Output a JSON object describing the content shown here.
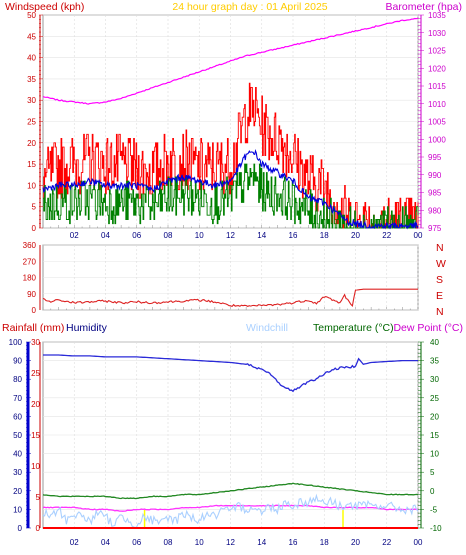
{
  "chart_data": [
    {
      "type": "line",
      "title": "24 hour graph day : 01 April 2025",
      "left_axis_label": "Windspeed (kph)",
      "right_axis_label": "Barometer (hpa)",
      "x_ticks": [
        "02",
        "04",
        "06",
        "08",
        "10",
        "12",
        "14",
        "16",
        "18",
        "20",
        "22",
        "00"
      ],
      "left_ticks": [
        "0",
        "5",
        "10",
        "15",
        "20",
        "25",
        "30",
        "35",
        "40",
        "45",
        "50"
      ],
      "right_ticks": [
        "975",
        "980",
        "985",
        "990",
        "995",
        "1000",
        "1005",
        "1010",
        "1015",
        "1020",
        "1025",
        "1030",
        "1035"
      ],
      "ylim_left": [
        0,
        50
      ],
      "ylim_right": [
        975,
        1035
      ],
      "grid": true,
      "colors": {
        "gust": "#ff0000",
        "avg": "#0000dd",
        "low": "#008000",
        "baro": "#ff00ff"
      },
      "series": [
        {
          "key": "gust",
          "color": "#ff0000",
          "x": [
            0,
            1,
            2,
            3,
            4,
            5,
            6,
            7,
            8,
            9,
            10,
            11,
            12,
            12.5,
            13,
            13.5,
            14,
            14.5,
            15,
            16,
            17,
            18,
            19,
            19.5,
            20,
            21,
            22,
            23,
            24
          ],
          "values": [
            12,
            14,
            15,
            16,
            15,
            15,
            14,
            13,
            16,
            16,
            14,
            14,
            15,
            20,
            27,
            28,
            24,
            22,
            21,
            17,
            11,
            10,
            5,
            2,
            2,
            1,
            1,
            1,
            1
          ]
        },
        {
          "key": "avg",
          "color": "#0000dd",
          "x": [
            0,
            1,
            2,
            3,
            4,
            5,
            6,
            7,
            8,
            9,
            10,
            11,
            12,
            12.5,
            13,
            13.5,
            14,
            14.5,
            15,
            16,
            17,
            18,
            19,
            19.5,
            20,
            21,
            22,
            23,
            24
          ],
          "values": [
            9,
            10,
            10,
            11,
            10,
            10,
            10,
            9,
            11,
            12,
            11,
            10,
            11,
            14,
            17,
            18,
            15,
            14,
            13,
            11,
            7,
            6,
            3,
            1.5,
            1,
            0.5,
            0.5,
            0.5,
            0.5
          ]
        },
        {
          "key": "low",
          "color": "#008000",
          "x": [
            0,
            1,
            2,
            3,
            4,
            5,
            6,
            7,
            8,
            9,
            10,
            11,
            12,
            12.5,
            13,
            13.5,
            14,
            14.5,
            15,
            16,
            17,
            18,
            19,
            19.5,
            20,
            21,
            22,
            23,
            24
          ],
          "values": [
            5,
            6,
            6,
            7,
            6,
            6,
            6,
            5,
            7,
            8,
            7,
            6,
            7,
            9,
            11,
            12,
            9,
            8,
            8,
            6,
            4,
            3,
            1,
            0,
            0,
            0,
            0,
            0,
            0
          ]
        },
        {
          "key": "baro",
          "color": "#ff00ff",
          "x": [
            0,
            1,
            2,
            3,
            4,
            5,
            6,
            7,
            8,
            9,
            10,
            11,
            12,
            13,
            14,
            15,
            16,
            17,
            18,
            19,
            20,
            21,
            22,
            23,
            24
          ],
          "values": [
            1012,
            1011,
            1010.5,
            1010,
            1010.5,
            1011.5,
            1013,
            1014.5,
            1016,
            1017.5,
            1019,
            1020.5,
            1022,
            1023.5,
            1024.5,
            1025.5,
            1026.5,
            1027.5,
            1028.5,
            1029.5,
            1030.5,
            1031.5,
            1032.5,
            1033.5,
            1034
          ]
        }
      ]
    },
    {
      "type": "line",
      "title": "",
      "y_ticks": [
        "0",
        "90",
        "180",
        "270",
        "360"
      ],
      "ylim": [
        0,
        360
      ],
      "compass_labels": [
        "N",
        "W",
        "S",
        "E",
        "N"
      ],
      "grid": true,
      "series": [
        {
          "key": "direction",
          "color": "#dd2222",
          "x": [
            0,
            0.5,
            1,
            2,
            3,
            4,
            5,
            6,
            7,
            8,
            9,
            10,
            11,
            12,
            13,
            14,
            15,
            16,
            17,
            17.5,
            18,
            19,
            19.3,
            19.8,
            20,
            20.5,
            21,
            22,
            23,
            24
          ],
          "values": [
            60,
            45,
            55,
            40,
            45,
            50,
            40,
            45,
            40,
            45,
            50,
            55,
            45,
            25,
            20,
            25,
            30,
            40,
            55,
            35,
            75,
            40,
            80,
            20,
            110,
            115,
            115,
            115,
            115,
            115
          ]
        }
      ]
    },
    {
      "type": "line",
      "labels": {
        "rain": "Rainfall (mm)",
        "humidity": "Humidity",
        "windchill": "Windchill",
        "temperature": "Temperature (°C)",
        "dewpoint": "Dew Point (°C)"
      },
      "x_ticks": [
        "02",
        "04",
        "06",
        "08",
        "10",
        "12",
        "14",
        "16",
        "18",
        "20",
        "22",
        "00"
      ],
      "humidity_ticks": [
        "0",
        "10",
        "20",
        "30",
        "40",
        "50",
        "60",
        "70",
        "80",
        "90",
        "100"
      ],
      "rain_ticks": [
        "0",
        "5",
        "10",
        "15",
        "20",
        "25",
        "30"
      ],
      "temp_ticks": [
        "-10",
        "-5",
        "0",
        "5",
        "10",
        "15",
        "20",
        "25",
        "30",
        "35",
        "40"
      ],
      "ylim_humidity": [
        0,
        100
      ],
      "ylim_rain": [
        0,
        30
      ],
      "ylim_temp": [
        -10,
        40
      ],
      "grid": true,
      "series": [
        {
          "key": "humidity",
          "color": "#2a2ad8",
          "x": [
            0,
            1,
            2,
            3,
            4,
            5,
            6,
            7,
            8,
            9,
            10,
            11,
            12,
            13,
            13.5,
            14,
            14.5,
            15,
            15.5,
            16,
            16.5,
            17,
            17.5,
            18,
            18.5,
            19,
            19.5,
            20,
            20.2,
            20.5,
            21,
            22,
            23,
            24
          ],
          "values": [
            93,
            93,
            92.5,
            92.5,
            92,
            92,
            92,
            91.5,
            91,
            90.5,
            90,
            89.5,
            89,
            88,
            87,
            85,
            83,
            79,
            75,
            74,
            76,
            79,
            80,
            83,
            85,
            86,
            86.5,
            87,
            91,
            88,
            89,
            89.5,
            90,
            90
          ]
        },
        {
          "key": "temperature",
          "color": "#228822",
          "x": [
            0,
            1,
            2,
            3,
            4,
            5,
            6,
            7,
            8,
            9,
            10,
            11,
            12,
            13,
            14,
            15,
            16,
            17,
            18,
            19,
            20,
            21,
            22,
            23,
            24
          ],
          "values": [
            -1,
            -1.5,
            -1.5,
            -1.5,
            -1.5,
            -2,
            -2,
            -1.5,
            -1.5,
            -1,
            -1,
            -0.5,
            0,
            0.5,
            1,
            1.5,
            2,
            1.5,
            1,
            0.5,
            0,
            -0.5,
            -1,
            -1,
            -1
          ]
        },
        {
          "key": "dewpoint",
          "color": "#ff33ff",
          "x": [
            0,
            1,
            2,
            3,
            4,
            5,
            6,
            7,
            8,
            9,
            10,
            11,
            12,
            13,
            14,
            15,
            16,
            17,
            18,
            19,
            20,
            21,
            22,
            23,
            24
          ],
          "values": [
            -4.5,
            -4.5,
            -4.5,
            -5,
            -5,
            -5.5,
            -5,
            -5,
            -5,
            -4.5,
            -4.5,
            -4,
            -4,
            -4,
            -4,
            -4,
            -4,
            -4,
            -4.5,
            -4.5,
            -4.5,
            -4.5,
            -5,
            -5,
            -5
          ]
        },
        {
          "key": "windchill",
          "color": "#aad0ff",
          "x": [
            0,
            0.5,
            1,
            1.5,
            2,
            2.5,
            3,
            3.5,
            4,
            4.5,
            5,
            5.5,
            6,
            6.5,
            7,
            7.5,
            8,
            8.5,
            9,
            9.5,
            10,
            10.5,
            11,
            11.5,
            12,
            12.5,
            13,
            13.5,
            14,
            14.5,
            15,
            15.5,
            16,
            16.5,
            17,
            17.5,
            18,
            18.5,
            19,
            19.5,
            20,
            20.5,
            21,
            22,
            23,
            24
          ],
          "values": [
            -6,
            -7,
            -5,
            -8,
            -6,
            -7,
            -8,
            -6,
            -7,
            -9,
            -7,
            -8,
            -9,
            -7,
            -8,
            -9,
            -7,
            -8,
            -6,
            -7,
            -8,
            -6,
            -7,
            -5,
            -6,
            -4,
            -5,
            -4,
            -6,
            -4,
            -5,
            -3,
            -4,
            -3,
            -3,
            -2,
            -3,
            -3,
            -4,
            -4,
            -4,
            -4,
            -4,
            -4,
            -5,
            -5
          ]
        },
        {
          "key": "rain",
          "color": "#ff0000",
          "x": [
            0,
            24
          ],
          "values": [
            0,
            0
          ]
        }
      ],
      "markers": [
        {
          "x": 6.5,
          "color": "#ffff00"
        },
        {
          "x": 19.2,
          "color": "#ffff00"
        }
      ]
    }
  ]
}
